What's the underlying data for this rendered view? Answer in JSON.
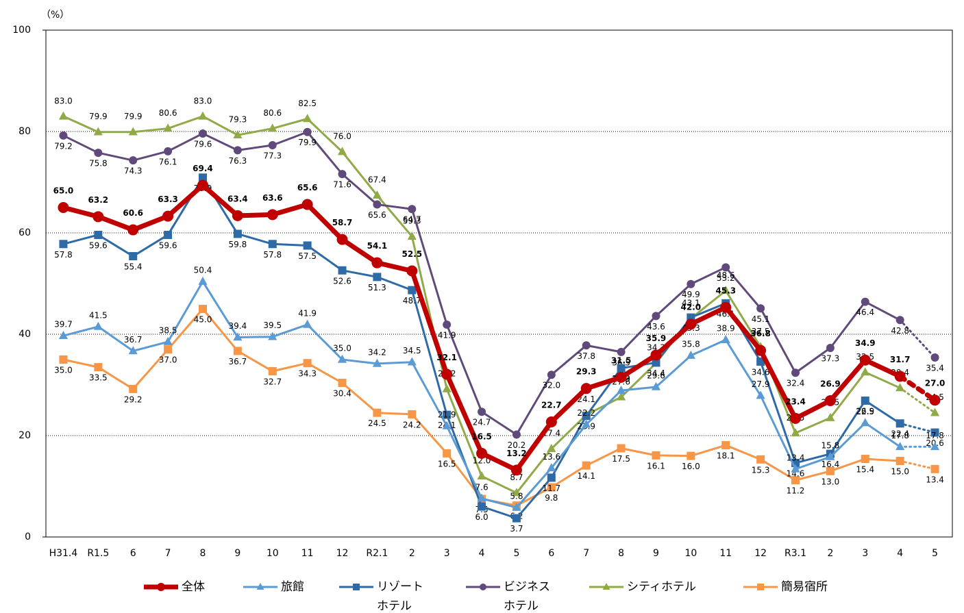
{
  "chart_data": {
    "type": "line",
    "y_label": "（%）",
    "categories": [
      "H31.4",
      "R1.5",
      "6",
      "7",
      "8",
      "9",
      "10",
      "11",
      "12",
      "R2.1",
      "2",
      "3",
      "4",
      "5",
      "6",
      "7",
      "8",
      "9",
      "10",
      "11",
      "12",
      "R3.1",
      "2",
      "3",
      "4",
      "5"
    ],
    "ylim": [
      0,
      100
    ],
    "yticks": [
      0,
      20,
      40,
      60,
      80,
      100
    ],
    "grid": true,
    "legend": "bottom",
    "dotted_last": true,
    "series": [
      {
        "name": "全体",
        "color": "#c00000",
        "marker": "circle",
        "width": 7,
        "values": [
          65.0,
          63.2,
          60.6,
          63.3,
          69.4,
          63.4,
          63.6,
          65.6,
          58.7,
          54.1,
          52.5,
          32.1,
          16.5,
          13.2,
          22.7,
          29.3,
          31.5,
          35.9,
          42.0,
          45.3,
          36.8,
          23.4,
          26.9,
          34.9,
          31.7,
          27.0
        ],
        "value_labels": [
          "65.0",
          "63.2",
          "60.6",
          "63.3",
          "69.4",
          "63.4",
          "63.6",
          "65.6",
          "58.7",
          "54.1",
          "52.5",
          "32.1",
          "16.5",
          "13.2",
          "22.7",
          "29.3",
          "31.5",
          "35.9",
          "42.0",
          "45.3",
          "36.8",
          "23.4",
          "26.9",
          "34.9",
          "31.7",
          "27.0"
        ]
      },
      {
        "name": "旅館",
        "color": "#5b9bd5",
        "marker": "triangle",
        "width": 3,
        "values": [
          39.7,
          41.5,
          36.7,
          38.5,
          50.4,
          39.4,
          39.5,
          41.9,
          35.0,
          34.2,
          34.5,
          21.9,
          7.6,
          5.8,
          13.6,
          22.2,
          28.9,
          29.6,
          35.8,
          38.9,
          27.9,
          13.4,
          15.8,
          22.5,
          17.8,
          17.8
        ],
        "value_labels": [
          "39.7",
          "41.5",
          "36.7",
          "38.5",
          "50.4",
          "39.4",
          "39.5",
          "41.9",
          "35.0",
          "34.2",
          "34.5",
          "21.9",
          "7.6",
          "5.8",
          "13.6",
          "22.2",
          "28.9",
          "29.6",
          "35.8",
          "38.9",
          "27.9",
          "13.4",
          "15.8",
          "22.5",
          "17.8",
          "17.8"
        ]
      },
      {
        "name": "リゾート\nホテル",
        "color": "#2e6aa6",
        "marker": "square",
        "width": 3,
        "values": [
          57.8,
          59.6,
          55.4,
          59.6,
          70.9,
          59.8,
          57.8,
          57.5,
          52.6,
          51.3,
          48.7,
          24.1,
          6.0,
          3.7,
          11.7,
          23.9,
          33.3,
          34.4,
          43.3,
          46.1,
          34.6,
          14.6,
          16.4,
          26.9,
          22.4,
          20.6
        ],
        "value_labels": [
          "57.8",
          "59.6",
          "55.4",
          "59.6",
          "70.9",
          "59.8",
          "57.8",
          "57.5",
          "52.6",
          "51.3",
          "48.7",
          "24.1",
          "6.0",
          "3.7",
          "11.7",
          "23.9",
          "33.3",
          "34.4",
          "43.3",
          "46.1",
          "34.6",
          "14.6",
          "16.4",
          "26.9",
          "22.4",
          "20.6"
        ]
      },
      {
        "name": "ビジネス\nホテル",
        "color": "#604a7b",
        "marker": "circle",
        "width": 3,
        "values": [
          79.2,
          75.8,
          74.3,
          76.1,
          79.6,
          76.3,
          77.3,
          79.9,
          71.6,
          65.6,
          64.7,
          41.9,
          24.7,
          20.2,
          32.0,
          37.8,
          36.5,
          43.6,
          49.9,
          53.2,
          45.1,
          32.4,
          37.3,
          46.4,
          42.8,
          35.4
        ],
        "value_labels": [
          "79.2",
          "75.8",
          "74.3",
          "76.1",
          "79.6",
          "76.3",
          "77.3",
          "79.9",
          "71.6",
          "65.6",
          "64.7",
          "41.9",
          "24.7",
          "20.2",
          "32.0",
          "37.8",
          "36.5",
          "43.6",
          "49.9",
          "53.2",
          "45.1",
          "32.4",
          "37.3",
          "46.4",
          "42.8",
          "35.4"
        ]
      },
      {
        "name": "シティホテル",
        "color": "#8faa46",
        "marker": "triangle",
        "width": 3,
        "values": [
          83.0,
          79.9,
          79.9,
          80.6,
          83.0,
          79.3,
          80.6,
          82.5,
          76.0,
          67.4,
          59.3,
          29.2,
          12.0,
          8.7,
          17.4,
          24.1,
          27.6,
          34.3,
          43.1,
          48.6,
          37.5,
          20.5,
          23.5,
          32.5,
          29.4,
          24.5
        ],
        "value_labels": [
          "83.0",
          "79.9",
          "79.9",
          "80.6",
          "83.0",
          "79.3",
          "80.6",
          "82.5",
          "76.0",
          "67.4",
          "59.3",
          "29.2",
          "12.0",
          "8.7",
          "17.4",
          "24.1",
          "27.6",
          "34.3",
          "43.1",
          "48.6",
          "37.5",
          "20.5",
          "23.5",
          "32.5",
          "29.4",
          "24.5"
        ]
      },
      {
        "name": "簡易宿所",
        "color": "#f79646",
        "marker": "square",
        "width": 3,
        "values": [
          35.0,
          33.5,
          29.2,
          37.0,
          45.0,
          36.7,
          32.7,
          34.3,
          30.4,
          24.5,
          24.2,
          16.5,
          7.5,
          6.2,
          9.8,
          14.1,
          17.5,
          16.1,
          16.0,
          18.1,
          15.3,
          11.2,
          13.0,
          15.4,
          15.0,
          13.4
        ],
        "value_labels": [
          "35.0",
          "33.5",
          "29.2",
          "37.0",
          "45.0",
          "36.7",
          "32.7",
          "34.3",
          "30.4",
          "24.5",
          "24.2",
          "16.5",
          "7.5",
          "6.2",
          "9.8",
          "14.1",
          "17.5",
          "16.1",
          "16.0",
          "18.1",
          "15.3",
          "11.2",
          "13.0",
          "15.4",
          "15.0",
          "13.4"
        ]
      }
    ]
  }
}
